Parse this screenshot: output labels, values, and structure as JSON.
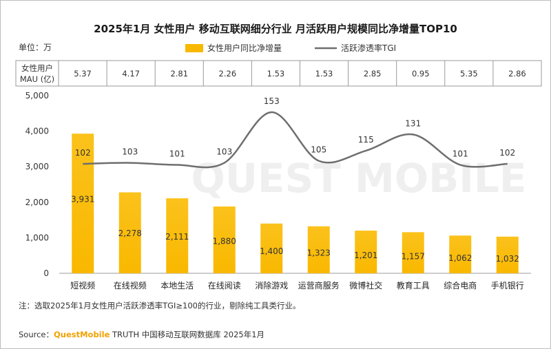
{
  "chart_data": {
    "type": "bar",
    "title": "2025年1月 女性用户 移动互联网细分行业 月活跃用户规模同比净增量TOP10",
    "unit_label": "单位：万",
    "categories": [
      "短视频",
      "在线视频",
      "本地生活",
      "在线阅读",
      "消除游戏",
      "运营商服务",
      "微博社交",
      "教育工具",
      "综合电商",
      "手机银行"
    ],
    "series": [
      {
        "name": "女性用户同比净增量",
        "type": "bar",
        "color": "#f9b800",
        "values": [
          3931,
          2278,
          2111,
          1880,
          1400,
          1323,
          1201,
          1157,
          1062,
          1032
        ],
        "value_labels": [
          "3,931",
          "2,278",
          "2,111",
          "1,880",
          "1,400",
          "1,323",
          "1,201",
          "1,157",
          "1,062",
          "1,032"
        ]
      },
      {
        "name": "活跃渗透率TGI",
        "type": "line",
        "color": "#6e6e6e",
        "values": [
          102,
          103,
          101,
          103,
          153,
          105,
          115,
          131,
          101,
          102
        ]
      }
    ],
    "mau_table": {
      "header_line1": "女性用户",
      "header_line2": "MAU (亿)",
      "values": [
        "5.37",
        "4.17",
        "2.81",
        "2.26",
        "1.53",
        "1.53",
        "2.85",
        "0.95",
        "5.35",
        "2.86"
      ]
    },
    "y_axis": {
      "min": 0,
      "max": 5000,
      "ticks": [
        0,
        1000,
        2000,
        3000,
        4000,
        5000
      ],
      "tick_labels": [
        "0",
        "1,000",
        "2,000",
        "3,000",
        "4,000",
        "5,000"
      ]
    },
    "legend_position": "top",
    "grid": false
  },
  "note": "注：选取2025年1月女性用户活跃渗透率TGI≥100的行业，剔除纯工具类行业。",
  "source": {
    "prefix": "Source：",
    "brand": "QuestMobile",
    "rest": " TRUTH 中国移动互联网数据库 2025年1月"
  },
  "watermark": "QUEST MOBILE"
}
